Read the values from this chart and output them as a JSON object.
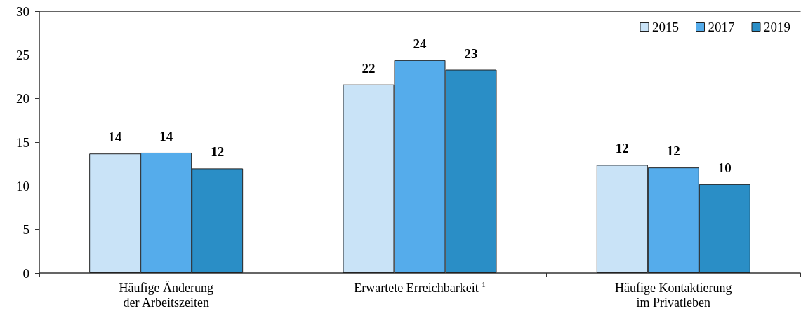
{
  "chart_data": {
    "type": "bar",
    "categories": [
      "Häufige Änderung\nder Arbeitszeiten",
      "Erwartete Erreichbarkeit$^{1}$",
      "Häufige Kontaktierung\nim Privatleben"
    ],
    "series": [
      {
        "name": "2015",
        "color": "#c9e3f7",
        "values": [
          13.7,
          21.6,
          12.4
        ],
        "value_labels": [
          "14",
          "22",
          "12"
        ]
      },
      {
        "name": "2017",
        "color": "#55aceb",
        "values": [
          13.8,
          24.4,
          12.1
        ],
        "value_labels": [
          "14",
          "24",
          "12"
        ]
      },
      {
        "name": "2019",
        "color": "#2a8ec6",
        "values": [
          12.0,
          23.3,
          10.2
        ],
        "value_labels": [
          "12",
          "23",
          "10"
        ]
      }
    ],
    "ylim": [
      0,
      30
    ],
    "yticks": [
      0,
      5,
      10,
      15,
      20,
      25,
      30
    ],
    "grid": false,
    "legend": "top right"
  }
}
